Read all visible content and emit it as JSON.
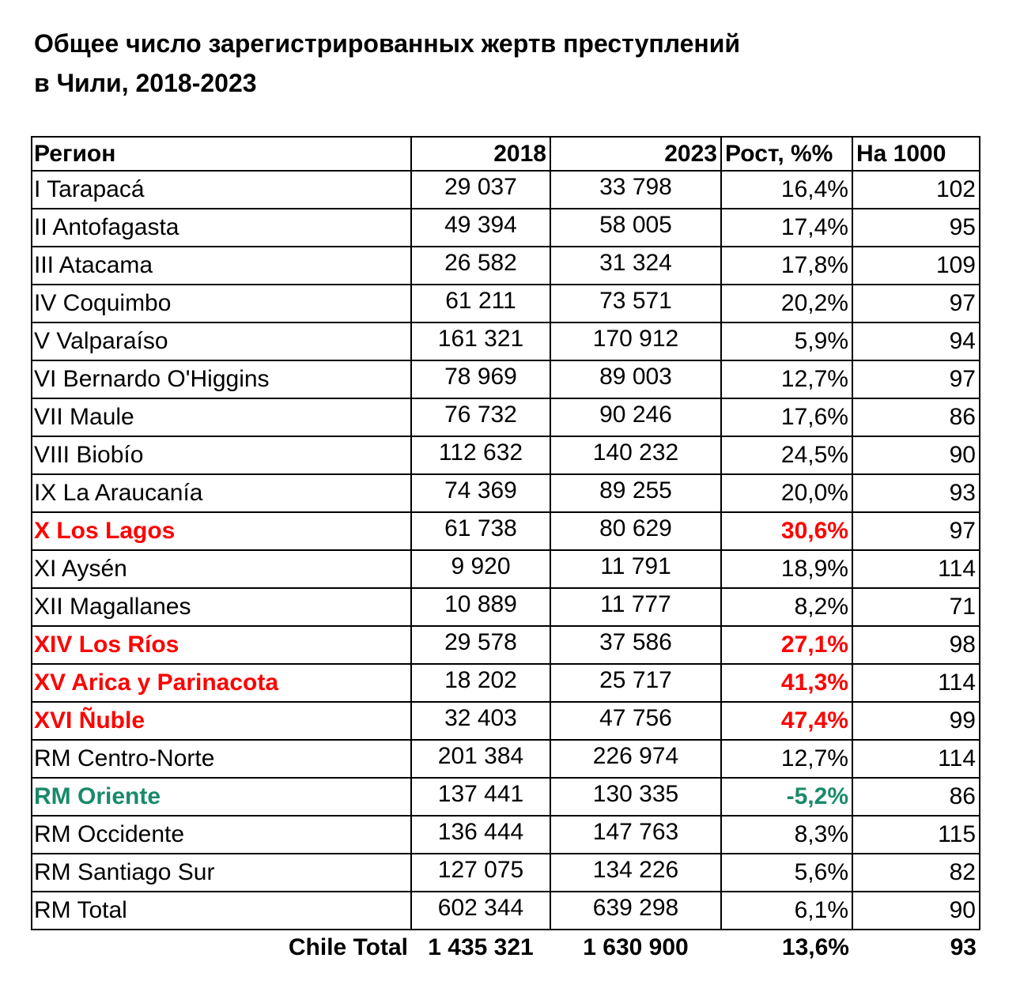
{
  "title": "Общее число зарегистрированных жертв преступлений в Чили, 2018-2023",
  "colors": {
    "highlight_red": "#ff0000",
    "highlight_green": "#1a8a6a"
  },
  "headers": [
    "Регион",
    "2018",
    "2023",
    "Рост, %%",
    "На 1000"
  ],
  "rows": [
    {
      "region": "I Tarapacá",
      "y2018": "29 037",
      "y2023": "33 798",
      "growth": "16,4%",
      "per1000": "102",
      "style": ""
    },
    {
      "region": "II Antofagasta",
      "y2018": "49 394",
      "y2023": "58 005",
      "growth": "17,4%",
      "per1000": "95",
      "style": ""
    },
    {
      "region": "III Atacama",
      "y2018": "26 582",
      "y2023": "31 324",
      "growth": "17,8%",
      "per1000": "109",
      "style": ""
    },
    {
      "region": "IV Coquimbo",
      "y2018": "61 211",
      "y2023": "73 571",
      "growth": "20,2%",
      "per1000": "97",
      "style": ""
    },
    {
      "region": "V Valparaíso",
      "y2018": "161 321",
      "y2023": "170 912",
      "growth": "5,9%",
      "per1000": "94",
      "style": ""
    },
    {
      "region": "VI Bernardo O'Higgins",
      "y2018": "78 969",
      "y2023": "89 003",
      "growth": "12,7%",
      "per1000": "97",
      "style": ""
    },
    {
      "region": "VII Maule",
      "y2018": "76 732",
      "y2023": "90 246",
      "growth": "17,6%",
      "per1000": "86",
      "style": ""
    },
    {
      "region": "VIII Biobío",
      "y2018": "112 632",
      "y2023": "140 232",
      "growth": "24,5%",
      "per1000": "90",
      "style": ""
    },
    {
      "region": "IX La Araucanía",
      "y2018": "74 369",
      "y2023": "89 255",
      "growth": "20,0%",
      "per1000": "93",
      "style": ""
    },
    {
      "region": "X Los Lagos",
      "y2018": "61 738",
      "y2023": "80 629",
      "growth": "30,6%",
      "per1000": "97",
      "style": "red"
    },
    {
      "region": "XI Aysén",
      "y2018": "9 920",
      "y2023": "11 791",
      "growth": "18,9%",
      "per1000": "114",
      "style": ""
    },
    {
      "region": "XII Magallanes",
      "y2018": "10 889",
      "y2023": "11 777",
      "growth": "8,2%",
      "per1000": "71",
      "style": ""
    },
    {
      "region": "XIV Los Ríos",
      "y2018": "29 578",
      "y2023": "37 586",
      "growth": "27,1%",
      "per1000": "98",
      "style": "red"
    },
    {
      "region": "XV Arica y Parinacota",
      "y2018": "18 202",
      "y2023": "25 717",
      "growth": "41,3%",
      "per1000": "114",
      "style": "red"
    },
    {
      "region": "XVI Ñuble",
      "y2018": "32 403",
      "y2023": "47 756",
      "growth": "47,4%",
      "per1000": "99",
      "style": "red"
    },
    {
      "region": "RM Centro-Norte",
      "y2018": "201 384",
      "y2023": "226 974",
      "growth": "12,7%",
      "per1000": "114",
      "style": ""
    },
    {
      "region": "RM Oriente",
      "y2018": "137 441",
      "y2023": "130 335",
      "growth": "-5,2%",
      "per1000": "86",
      "style": "green"
    },
    {
      "region": "RM Occidente",
      "y2018": "136 444",
      "y2023": "147 763",
      "growth": "8,3%",
      "per1000": "115",
      "style": ""
    },
    {
      "region": "RM Santiago Sur",
      "y2018": "127 075",
      "y2023": "134 226",
      "growth": "5,6%",
      "per1000": "82",
      "style": ""
    },
    {
      "region": "RM Total",
      "y2018": "602 344",
      "y2023": "639 298",
      "growth": "6,1%",
      "per1000": "90",
      "style": ""
    }
  ],
  "total": {
    "label": "Chile Total",
    "y2018": "1 435 321",
    "y2023": "1 630 900",
    "growth": "13,6%",
    "per1000": "93"
  }
}
